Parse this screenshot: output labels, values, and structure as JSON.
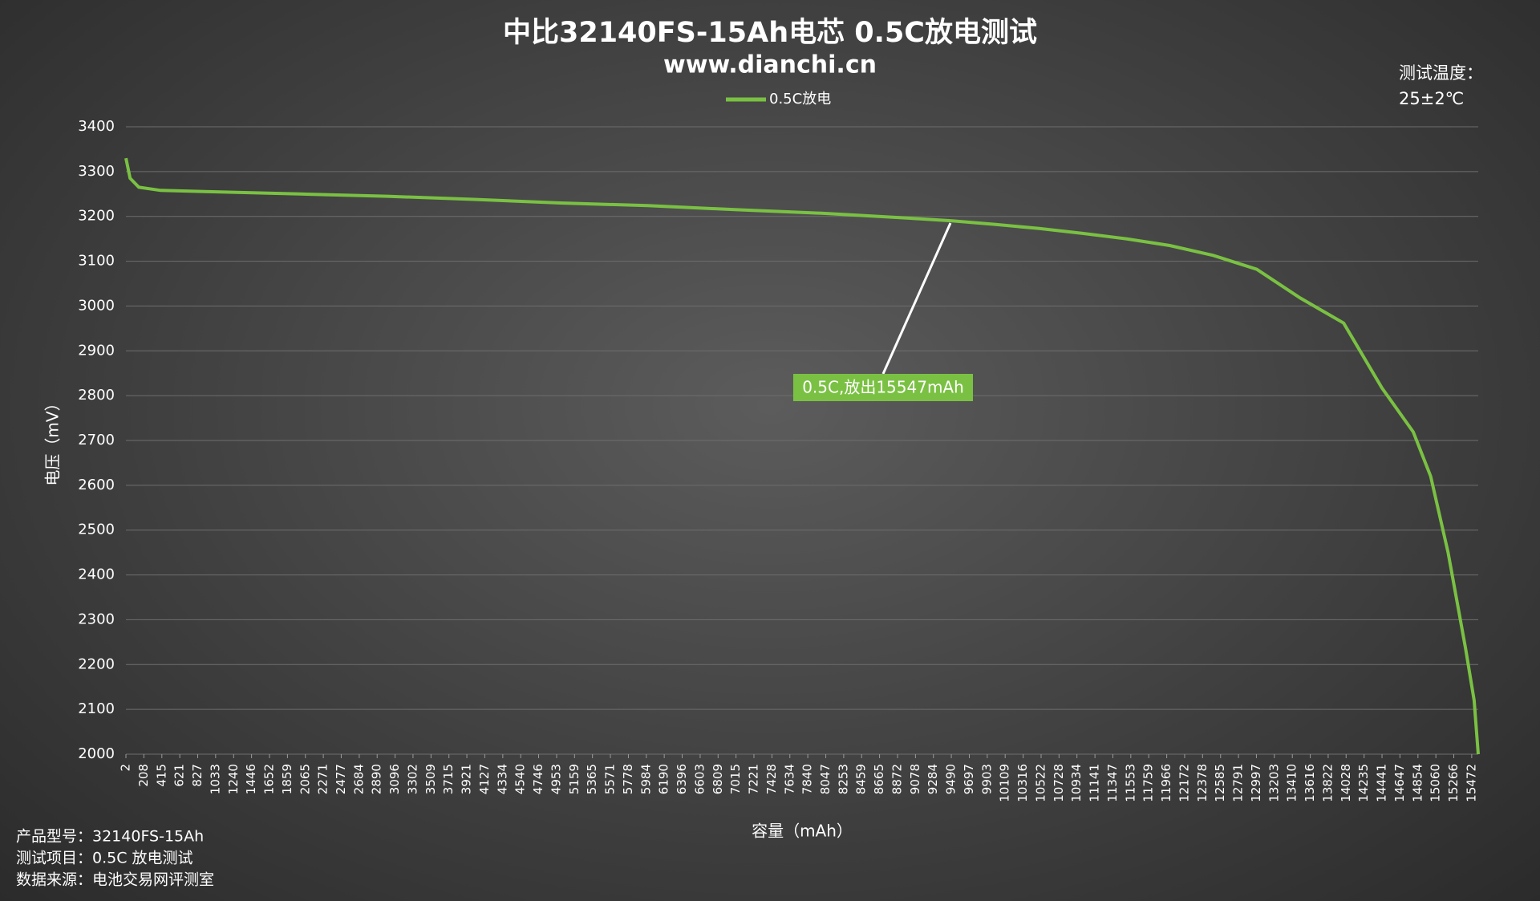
{
  "chart_data": {
    "type": "line",
    "title": "中比32140FS-15Ah电芯 0.5C放电测试",
    "subtitle": "www.dianchi.cn",
    "x_label": "容量（mAh）",
    "y_label": "电压（mV）",
    "temperature_note": [
      "测试温度：",
      "25±2℃"
    ],
    "footnotes": [
      "产品型号：32140FS-15Ah",
      "测试项目：0.5C 放电测试",
      "数据来源：电池交易网评测室"
    ],
    "annotation": "0.5C,放出15547mAh",
    "grid": true,
    "legend": "top",
    "xlim": [
      2,
      15547
    ],
    "ylim": [
      2000,
      3400
    ],
    "yticks": [
      2000,
      2100,
      2200,
      2300,
      2400,
      2500,
      2600,
      2700,
      2800,
      2900,
      3000,
      3100,
      3200,
      3300,
      3400
    ],
    "xticks": [
      2,
      208,
      415,
      621,
      827,
      1033,
      1240,
      1446,
      1652,
      1859,
      2065,
      2271,
      2477,
      2684,
      2890,
      3096,
      3302,
      3509,
      3715,
      3921,
      4127,
      4334,
      4540,
      4746,
      4953,
      5159,
      5365,
      5571,
      5778,
      5984,
      6190,
      6396,
      6603,
      6809,
      7015,
      7221,
      7428,
      7634,
      7840,
      8047,
      8253,
      8459,
      8665,
      8872,
      9078,
      9284,
      9490,
      9697,
      9903,
      10109,
      10316,
      10522,
      10728,
      10934,
      11141,
      11347,
      11553,
      11759,
      11966,
      12172,
      12378,
      12585,
      12791,
      12997,
      13203,
      13410,
      13616,
      13822,
      14028,
      14235,
      14441,
      14647,
      14854,
      15060,
      15266,
      15472
    ],
    "series": [
      {
        "name": "0.5C放电",
        "color": "#7ac143",
        "x": [
          2,
          50,
          150,
          400,
          1000,
          2000,
          3000,
          4000,
          5000,
          6000,
          7000,
          8000,
          9000,
          9500,
          10000,
          10500,
          11000,
          11500,
          12000,
          12500,
          13000,
          13500,
          14000,
          14441,
          14800,
          15000,
          15200,
          15400,
          15500,
          15547
        ],
        "values": [
          3330,
          3285,
          3265,
          3258,
          3255,
          3250,
          3245,
          3238,
          3230,
          3224,
          3215,
          3207,
          3196,
          3190,
          3182,
          3173,
          3162,
          3150,
          3135,
          3113,
          3082,
          3018,
          2962,
          2817,
          2719,
          2620,
          2450,
          2237,
          2120,
          2000
        ]
      }
    ]
  }
}
